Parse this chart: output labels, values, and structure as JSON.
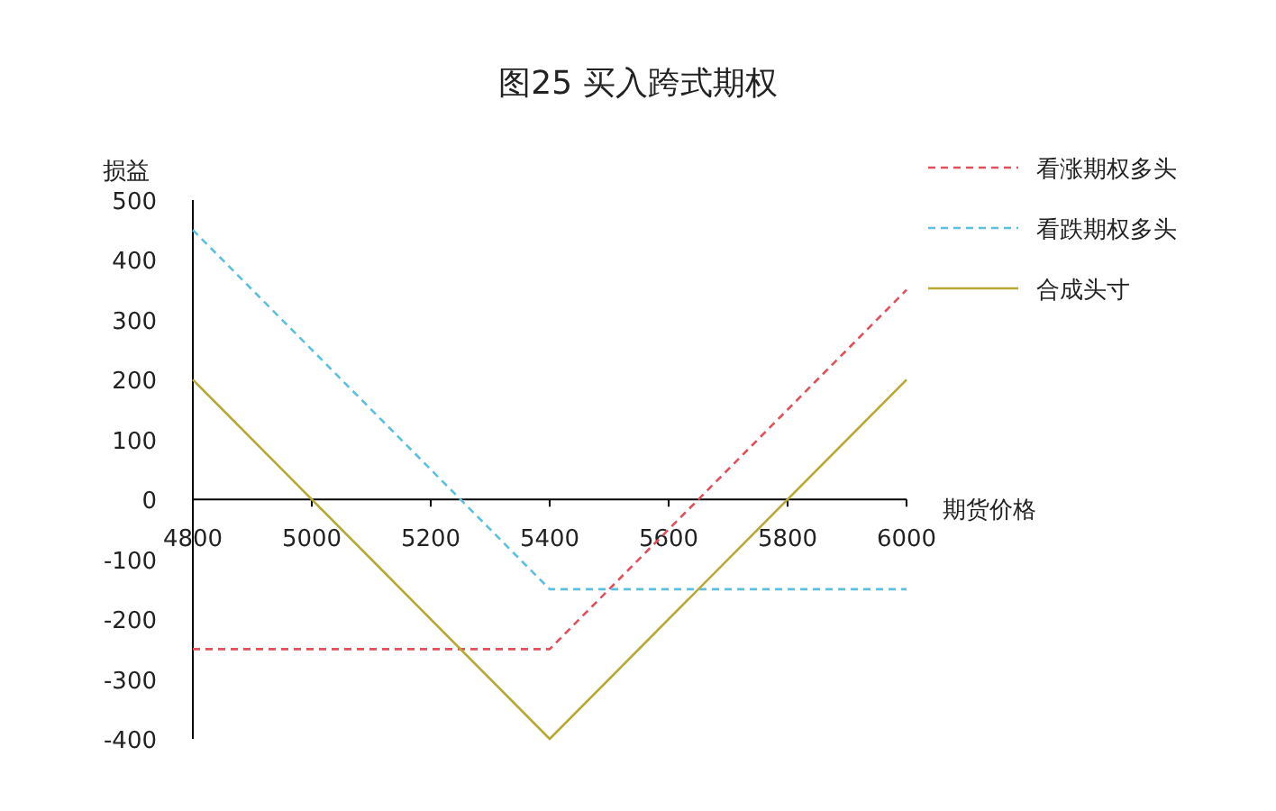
{
  "chart_data": {
    "type": "line",
    "title": "图25  买入跨式期权",
    "xlabel": "期货价格",
    "ylabel": "损益",
    "x": [
      4800,
      5400,
      6000
    ],
    "xlim": [
      4800,
      6000
    ],
    "xticks": [
      4800,
      5000,
      5200,
      5400,
      5600,
      5800,
      6000
    ],
    "ylim": [
      -400,
      500
    ],
    "yticks": [
      -400,
      -300,
      -200,
      -100,
      0,
      100,
      200,
      300,
      400,
      500
    ],
    "grid": false,
    "legend": "right",
    "marker": "none",
    "series": [
      {
        "name": "看涨期权多头",
        "color": "#e0505a",
        "line_style": "dashed",
        "values": [
          -250,
          -250,
          350
        ]
      },
      {
        "name": "看跌期权多头",
        "color": "#5bc0e0",
        "line_style": "dashed",
        "values": [
          450,
          -150,
          -150
        ]
      },
      {
        "name": "合成头寸",
        "color": "#b8a832",
        "line_style": "solid",
        "values": [
          200,
          -400,
          200
        ]
      }
    ]
  }
}
